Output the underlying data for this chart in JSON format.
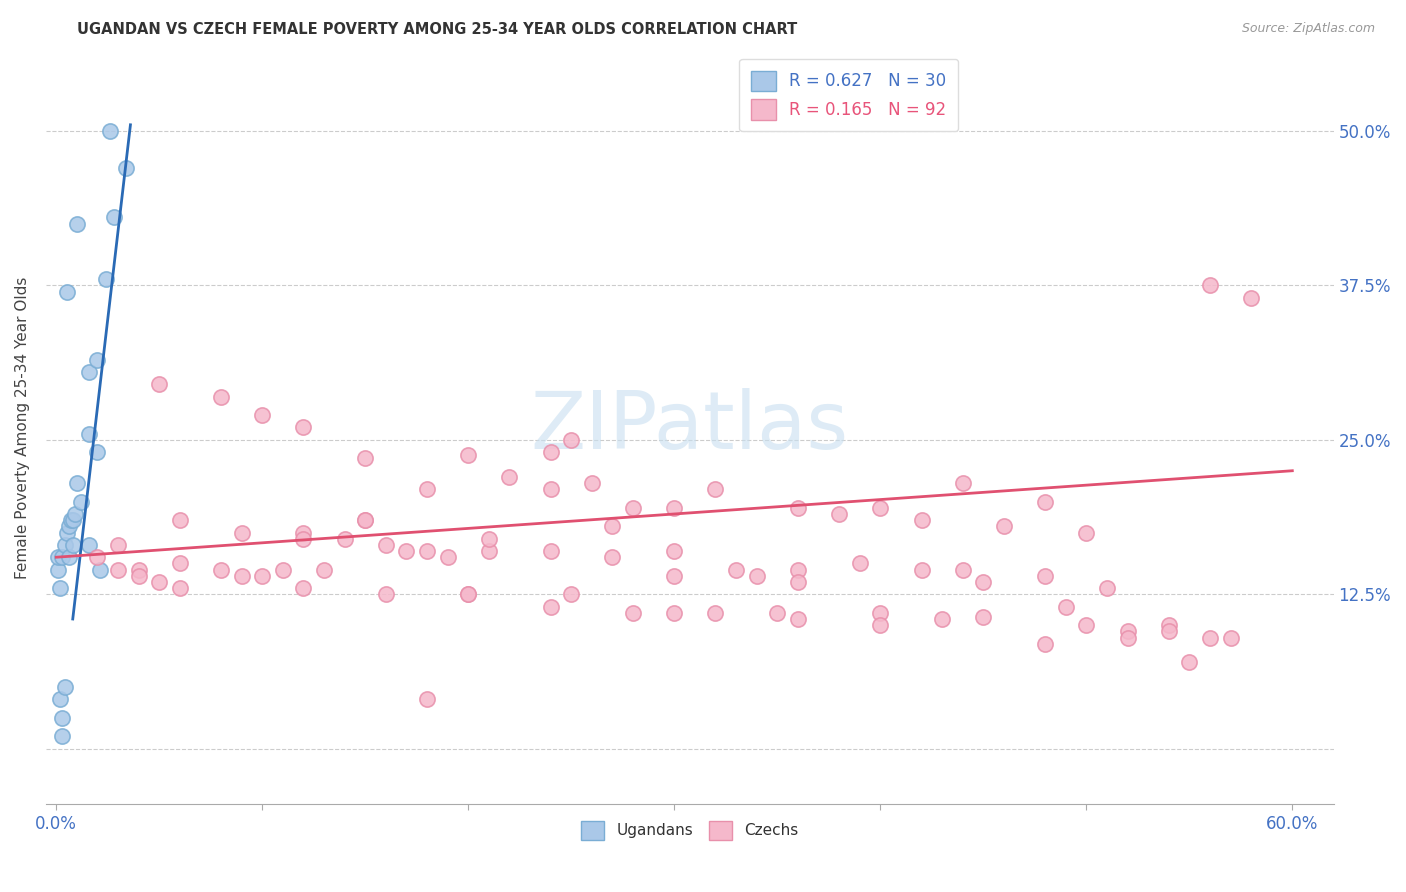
{
  "title": "UGANDAN VS CZECH FEMALE POVERTY AMONG 25-34 YEAR OLDS CORRELATION CHART",
  "source": "Source: ZipAtlas.com",
  "ylabel": "Female Poverty Among 25-34 Year Olds",
  "xlim": [
    -0.005,
    0.62
  ],
  "ylim": [
    -0.045,
    0.565
  ],
  "ytick_vals": [
    0.0,
    0.125,
    0.25,
    0.375,
    0.5
  ],
  "ytick_labels_right": [
    "",
    "12.5%",
    "25.0%",
    "37.5%",
    "50.0%"
  ],
  "xtick_vals": [
    0.0,
    0.1,
    0.2,
    0.3,
    0.4,
    0.5,
    0.6
  ],
  "xtick_labels": [
    "0.0%",
    "",
    "",
    "",
    "",
    "",
    "60.0%"
  ],
  "ugandan_color_face": "#aac8e8",
  "ugandan_color_edge": "#7aadd4",
  "czech_color_face": "#f5b8cb",
  "czech_color_edge": "#e890ab",
  "ugandan_line_color": "#2a6ab5",
  "czech_line_color": "#e05070",
  "watermark_color": "#c8dff0",
  "label_color": "#4472c4",
  "ug_line_x0": 0.008,
  "ug_line_y0": 0.105,
  "ug_line_x1": 0.036,
  "ug_line_y1": 0.505,
  "cz_line_x0": 0.0,
  "cz_line_y0": 0.155,
  "cz_line_x1": 0.6,
  "cz_line_y1": 0.225,
  "ugandan_x": [
    0.001,
    0.001,
    0.002,
    0.003,
    0.004,
    0.005,
    0.006,
    0.007,
    0.008,
    0.009,
    0.002,
    0.004,
    0.006,
    0.008,
    0.01,
    0.012,
    0.016,
    0.02,
    0.024,
    0.028,
    0.005,
    0.01,
    0.016,
    0.02,
    0.026,
    0.034,
    0.016,
    0.021,
    0.003,
    0.003
  ],
  "ugandan_y": [
    0.145,
    0.155,
    0.13,
    0.155,
    0.165,
    0.175,
    0.18,
    0.185,
    0.185,
    0.19,
    0.04,
    0.05,
    0.155,
    0.165,
    0.215,
    0.2,
    0.305,
    0.315,
    0.38,
    0.43,
    0.37,
    0.425,
    0.255,
    0.24,
    0.5,
    0.47,
    0.165,
    0.145,
    0.025,
    0.01
  ],
  "czech_x": [
    0.02,
    0.03,
    0.04,
    0.05,
    0.06,
    0.08,
    0.09,
    0.1,
    0.11,
    0.12,
    0.13,
    0.14,
    0.15,
    0.16,
    0.17,
    0.18,
    0.19,
    0.2,
    0.21,
    0.22,
    0.24,
    0.25,
    0.26,
    0.27,
    0.28,
    0.3,
    0.32,
    0.34,
    0.36,
    0.38,
    0.4,
    0.42,
    0.44,
    0.46,
    0.48,
    0.5,
    0.52,
    0.54,
    0.56,
    0.58,
    0.03,
    0.06,
    0.09,
    0.12,
    0.15,
    0.18,
    0.21,
    0.24,
    0.27,
    0.3,
    0.33,
    0.36,
    0.39,
    0.42,
    0.45,
    0.48,
    0.51,
    0.54,
    0.57,
    0.04,
    0.08,
    0.12,
    0.16,
    0.2,
    0.24,
    0.28,
    0.32,
    0.36,
    0.4,
    0.44,
    0.48,
    0.52,
    0.56,
    0.05,
    0.1,
    0.15,
    0.2,
    0.25,
    0.3,
    0.35,
    0.4,
    0.45,
    0.5,
    0.55,
    0.06,
    0.12,
    0.18,
    0.24,
    0.3,
    0.36,
    0.43,
    0.49
  ],
  "czech_y": [
    0.155,
    0.145,
    0.145,
    0.295,
    0.13,
    0.285,
    0.14,
    0.27,
    0.145,
    0.26,
    0.145,
    0.17,
    0.235,
    0.165,
    0.16,
    0.21,
    0.155,
    0.238,
    0.16,
    0.22,
    0.24,
    0.25,
    0.215,
    0.18,
    0.195,
    0.195,
    0.21,
    0.14,
    0.195,
    0.19,
    0.195,
    0.185,
    0.215,
    0.18,
    0.2,
    0.175,
    0.095,
    0.1,
    0.375,
    0.365,
    0.165,
    0.185,
    0.175,
    0.175,
    0.185,
    0.16,
    0.17,
    0.16,
    0.155,
    0.16,
    0.145,
    0.145,
    0.15,
    0.145,
    0.135,
    0.14,
    0.13,
    0.095,
    0.09,
    0.14,
    0.145,
    0.17,
    0.125,
    0.125,
    0.115,
    0.11,
    0.11,
    0.105,
    0.11,
    0.145,
    0.085,
    0.09,
    0.09,
    0.135,
    0.14,
    0.185,
    0.125,
    0.125,
    0.11,
    0.11,
    0.1,
    0.107,
    0.1,
    0.07,
    0.15,
    0.13,
    0.04,
    0.21,
    0.14,
    0.135,
    0.105,
    0.115
  ]
}
